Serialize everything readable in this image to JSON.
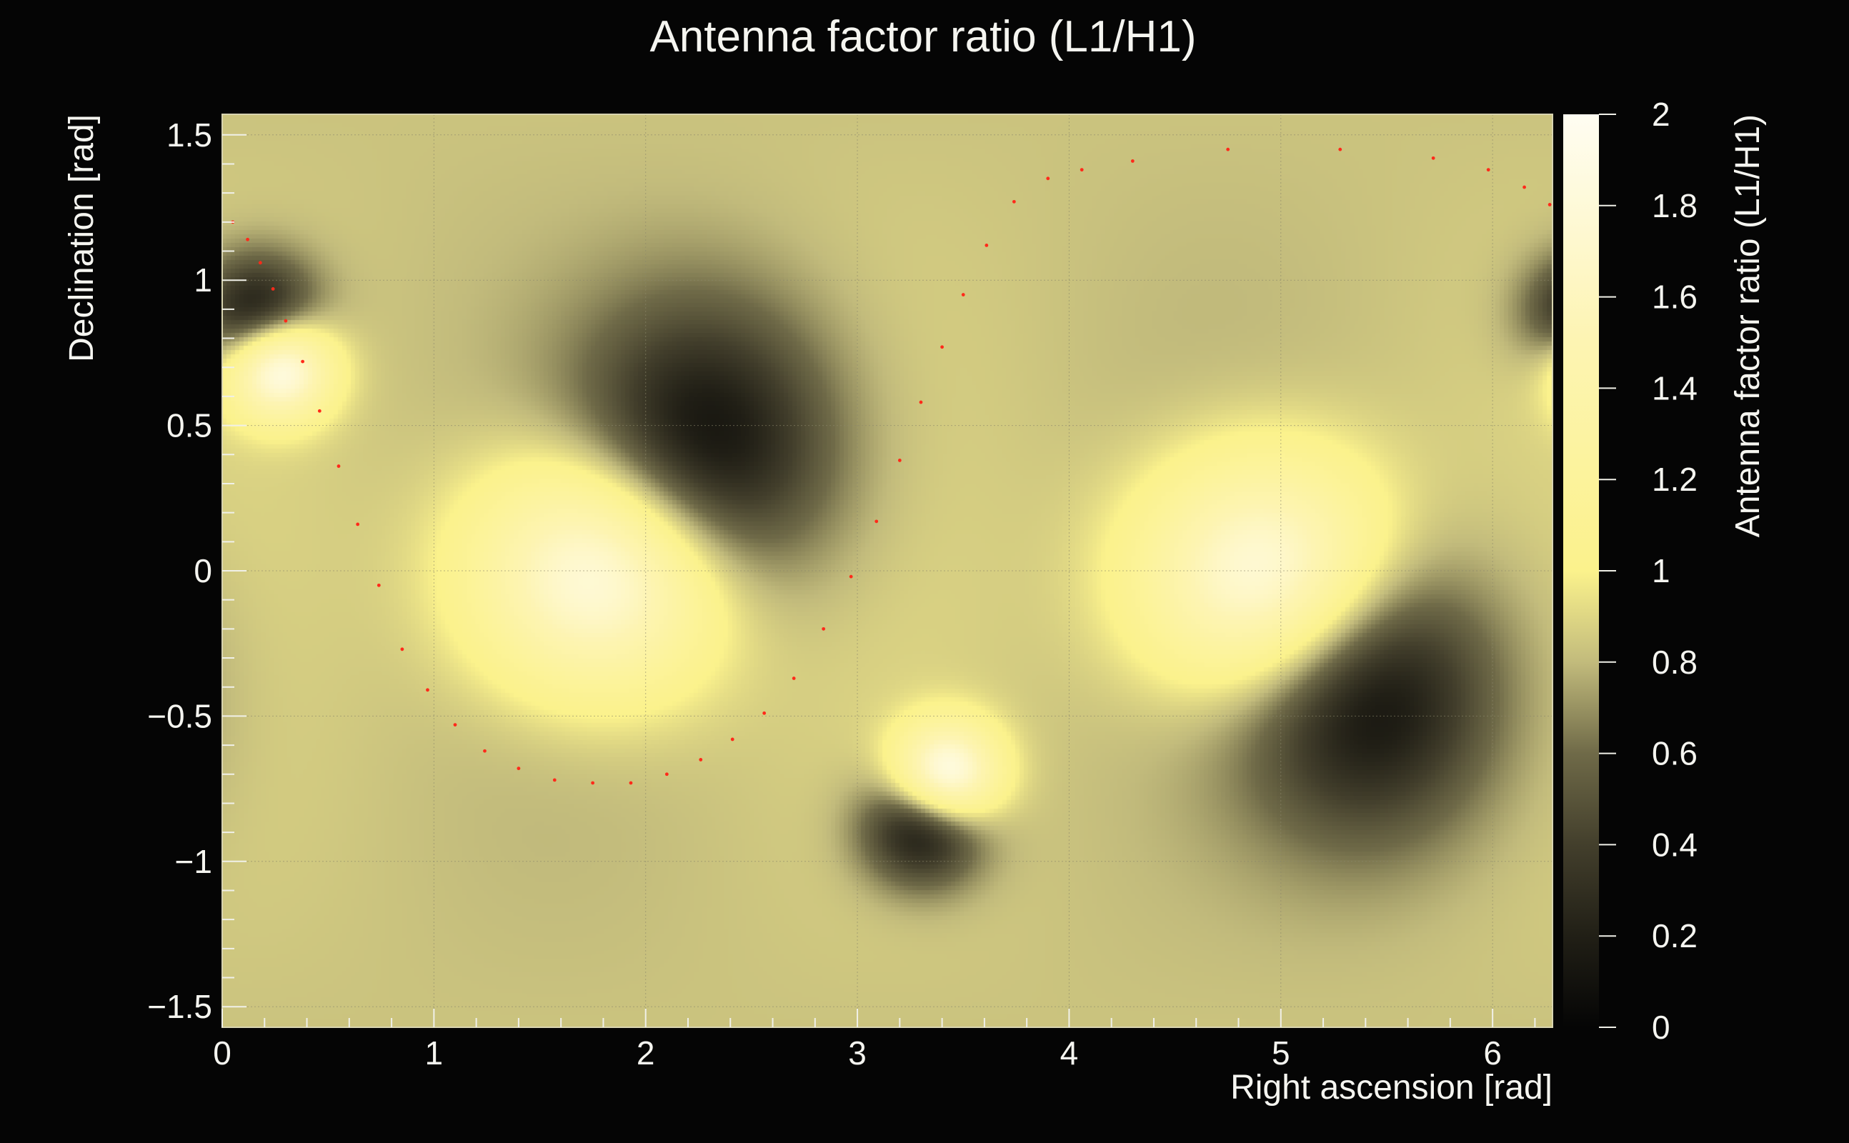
{
  "chart_data": {
    "type": "heatmap",
    "title": "Antenna factor ratio (L1/H1)",
    "xlabel": "Right ascension [rad]",
    "ylabel": "Declination [rad]",
    "zlabel": "Antenna factor ratio (L1/H1)",
    "xlim": [
      0,
      6.283
    ],
    "ylim": [
      -1.5708,
      1.5708
    ],
    "zlim": [
      0,
      2
    ],
    "x_ticks": [
      {
        "value": 0,
        "label": "0"
      },
      {
        "value": 1,
        "label": "1"
      },
      {
        "value": 2,
        "label": "2"
      },
      {
        "value": 3,
        "label": "3"
      },
      {
        "value": 4,
        "label": "4"
      },
      {
        "value": 5,
        "label": "5"
      },
      {
        "value": 6,
        "label": "6"
      }
    ],
    "y_ticks": [
      {
        "value": -1.5,
        "label": "−1.5"
      },
      {
        "value": -1,
        "label": "−1"
      },
      {
        "value": -0.5,
        "label": "−0.5"
      },
      {
        "value": 0,
        "label": "0"
      },
      {
        "value": 0.5,
        "label": "0.5"
      },
      {
        "value": 1,
        "label": "1"
      },
      {
        "value": 1.5,
        "label": "1.5"
      }
    ],
    "z_ticks": [
      {
        "value": 0,
        "label": "0"
      },
      {
        "value": 0.2,
        "label": "0.2"
      },
      {
        "value": 0.4,
        "label": "0.4"
      },
      {
        "value": 0.6,
        "label": "0.6"
      },
      {
        "value": 0.8,
        "label": "0.8"
      },
      {
        "value": 1,
        "label": "1"
      },
      {
        "value": 1.2,
        "label": "1.2"
      },
      {
        "value": 1.4,
        "label": "1.4"
      },
      {
        "value": 1.6,
        "label": "1.6"
      },
      {
        "value": 1.8,
        "label": "1.8"
      },
      {
        "value": 2,
        "label": "2"
      }
    ],
    "grid": true,
    "colorbar_position": "right",
    "field": {
      "base": 0.83,
      "features": [
        {
          "kind": "peak",
          "ra": 1.8,
          "dec": 0.0,
          "amp": 1.17,
          "sra": 0.42,
          "sdec": 0.28
        },
        {
          "kind": "peak",
          "ra": 4.95,
          "dec": -0.02,
          "amp": 1.17,
          "sra": 0.42,
          "sdec": 0.28
        },
        {
          "kind": "peak",
          "ra": 0.27,
          "dec": 0.7,
          "amp": 1.2,
          "sra": 0.17,
          "sdec": 0.12
        },
        {
          "kind": "peak",
          "ra": 3.42,
          "dec": -0.7,
          "amp": 1.2,
          "sra": 0.17,
          "sdec": 0.12
        },
        {
          "kind": "dip",
          "ra": 2.28,
          "dec": 0.4,
          "amp": 0.82,
          "sra": 0.42,
          "sdec": 0.35
        },
        {
          "kind": "dip",
          "ra": 5.42,
          "dec": -0.4,
          "amp": 0.82,
          "sra": 0.42,
          "sdec": 0.35
        },
        {
          "kind": "dip",
          "ra": 0.17,
          "dec": 0.88,
          "amp": 0.78,
          "sra": 0.2,
          "sdec": 0.14
        },
        {
          "kind": "dip",
          "ra": 3.31,
          "dec": -0.88,
          "amp": 0.78,
          "sra": 0.2,
          "sdec": 0.14
        }
      ]
    },
    "overlay_series": {
      "color": "#ff2a1a",
      "style": "dotted",
      "x": [
        0.05,
        0.12,
        0.18,
        0.24,
        0.3,
        0.38,
        0.46,
        0.55,
        0.64,
        0.74,
        0.85,
        0.97,
        1.1,
        1.24,
        1.4,
        1.57,
        1.75,
        1.93,
        2.1,
        2.26,
        2.41,
        2.56,
        2.7,
        2.84,
        2.97,
        3.09,
        3.2,
        3.3,
        3.4,
        3.5,
        3.61,
        3.74,
        3.9,
        4.06,
        4.3,
        4.75,
        5.28,
        5.72,
        5.98,
        6.15,
        6.27
      ],
      "y": [
        1.2,
        1.14,
        1.06,
        0.97,
        0.86,
        0.72,
        0.55,
        0.36,
        0.16,
        -0.05,
        -0.27,
        -0.41,
        -0.53,
        -0.62,
        -0.68,
        -0.72,
        -0.73,
        -0.73,
        -0.7,
        -0.65,
        -0.58,
        -0.49,
        -0.37,
        -0.2,
        -0.02,
        0.17,
        0.38,
        0.58,
        0.77,
        0.95,
        1.12,
        1.27,
        1.35,
        1.38,
        1.41,
        1.45,
        1.45,
        1.42,
        1.38,
        1.32,
        1.26
      ]
    }
  }
}
